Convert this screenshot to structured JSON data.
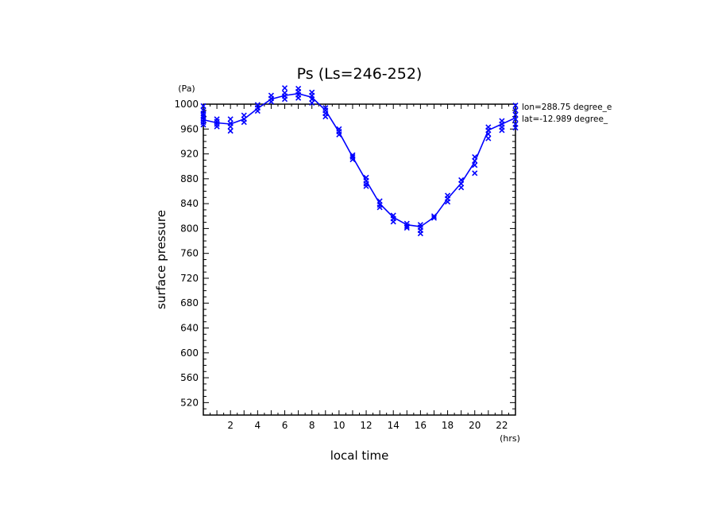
{
  "chart_data": {
    "type": "line",
    "title": "Ps (Ls=246-252)",
    "xlabel": "local time",
    "ylabel": "surface pressure",
    "x_unit": "(hrs)",
    "y_unit": "(Pa)",
    "xlim": [
      0,
      23
    ],
    "ylim": [
      500,
      1000
    ],
    "x_ticks": [
      2,
      4,
      6,
      8,
      10,
      12,
      14,
      16,
      18,
      20,
      22
    ],
    "y_ticks": [
      520,
      560,
      600,
      640,
      680,
      720,
      760,
      800,
      840,
      880,
      920,
      960,
      1000
    ],
    "annotations": [
      "lon=288.75 degree_e",
      "lat=-12.989 degree_"
    ],
    "color": "#0000ff",
    "series": [
      {
        "style": "line",
        "x": [
          0,
          1,
          2,
          3,
          4,
          5,
          6,
          7,
          8,
          9,
          10,
          11,
          12,
          13,
          14,
          15,
          16,
          17,
          18,
          19,
          20,
          21,
          22,
          23
        ],
        "y": [
          975,
          970,
          968,
          976,
          993,
          1008,
          1014,
          1017,
          1011,
          990,
          955,
          915,
          877,
          840,
          818,
          806,
          803,
          818,
          848,
          873,
          907,
          958,
          968,
          978
        ]
      },
      {
        "style": "x-markers",
        "points": [
          [
            0,
            997
          ],
          [
            0,
            990
          ],
          [
            0,
            985
          ],
          [
            0,
            982
          ],
          [
            0,
            979
          ],
          [
            0,
            975
          ],
          [
            0,
            971
          ],
          [
            0,
            967
          ],
          [
            1,
            976
          ],
          [
            1,
            972
          ],
          [
            1,
            968
          ],
          [
            1,
            964
          ],
          [
            2,
            976
          ],
          [
            2,
            969
          ],
          [
            2,
            964
          ],
          [
            2,
            957
          ],
          [
            3,
            982
          ],
          [
            3,
            976
          ],
          [
            3,
            971
          ],
          [
            4,
            999
          ],
          [
            4,
            994
          ],
          [
            4,
            989
          ],
          [
            5,
            1014
          ],
          [
            5,
            1009
          ],
          [
            5,
            1004
          ],
          [
            6,
            1026
          ],
          [
            6,
            1018
          ],
          [
            6,
            1013
          ],
          [
            6,
            1008
          ],
          [
            7,
            1025
          ],
          [
            7,
            1020
          ],
          [
            7,
            1015
          ],
          [
            7,
            1010
          ],
          [
            8,
            1019
          ],
          [
            8,
            1014
          ],
          [
            8,
            1008
          ],
          [
            8,
            1002
          ],
          [
            9,
            994
          ],
          [
            9,
            990
          ],
          [
            9,
            985
          ],
          [
            9,
            980
          ],
          [
            10,
            960
          ],
          [
            10,
            956
          ],
          [
            10,
            951
          ],
          [
            11,
            918
          ],
          [
            11,
            915
          ],
          [
            11,
            911
          ],
          [
            12,
            882
          ],
          [
            12,
            877
          ],
          [
            12,
            872
          ],
          [
            12,
            868
          ],
          [
            13,
            844
          ],
          [
            13,
            838
          ],
          [
            13,
            834
          ],
          [
            14,
            821
          ],
          [
            14,
            816
          ],
          [
            14,
            811
          ],
          [
            15,
            808
          ],
          [
            15,
            804
          ],
          [
            15,
            801
          ],
          [
            16,
            806
          ],
          [
            16,
            802
          ],
          [
            16,
            797
          ],
          [
            16,
            792
          ],
          [
            17,
            820
          ],
          [
            17,
            817
          ],
          [
            18,
            853
          ],
          [
            18,
            848
          ],
          [
            18,
            843
          ],
          [
            19,
            878
          ],
          [
            19,
            872
          ],
          [
            19,
            866
          ],
          [
            20,
            915
          ],
          [
            20,
            909
          ],
          [
            20,
            902
          ],
          [
            20,
            889
          ],
          [
            21,
            963
          ],
          [
            21,
            958
          ],
          [
            21,
            952
          ],
          [
            21,
            945
          ],
          [
            22,
            973
          ],
          [
            22,
            968
          ],
          [
            22,
            963
          ],
          [
            22,
            958
          ],
          [
            23,
            998
          ],
          [
            23,
            990
          ],
          [
            23,
            983
          ],
          [
            23,
            976
          ],
          [
            23,
            968
          ],
          [
            23,
            962
          ]
        ]
      }
    ]
  }
}
